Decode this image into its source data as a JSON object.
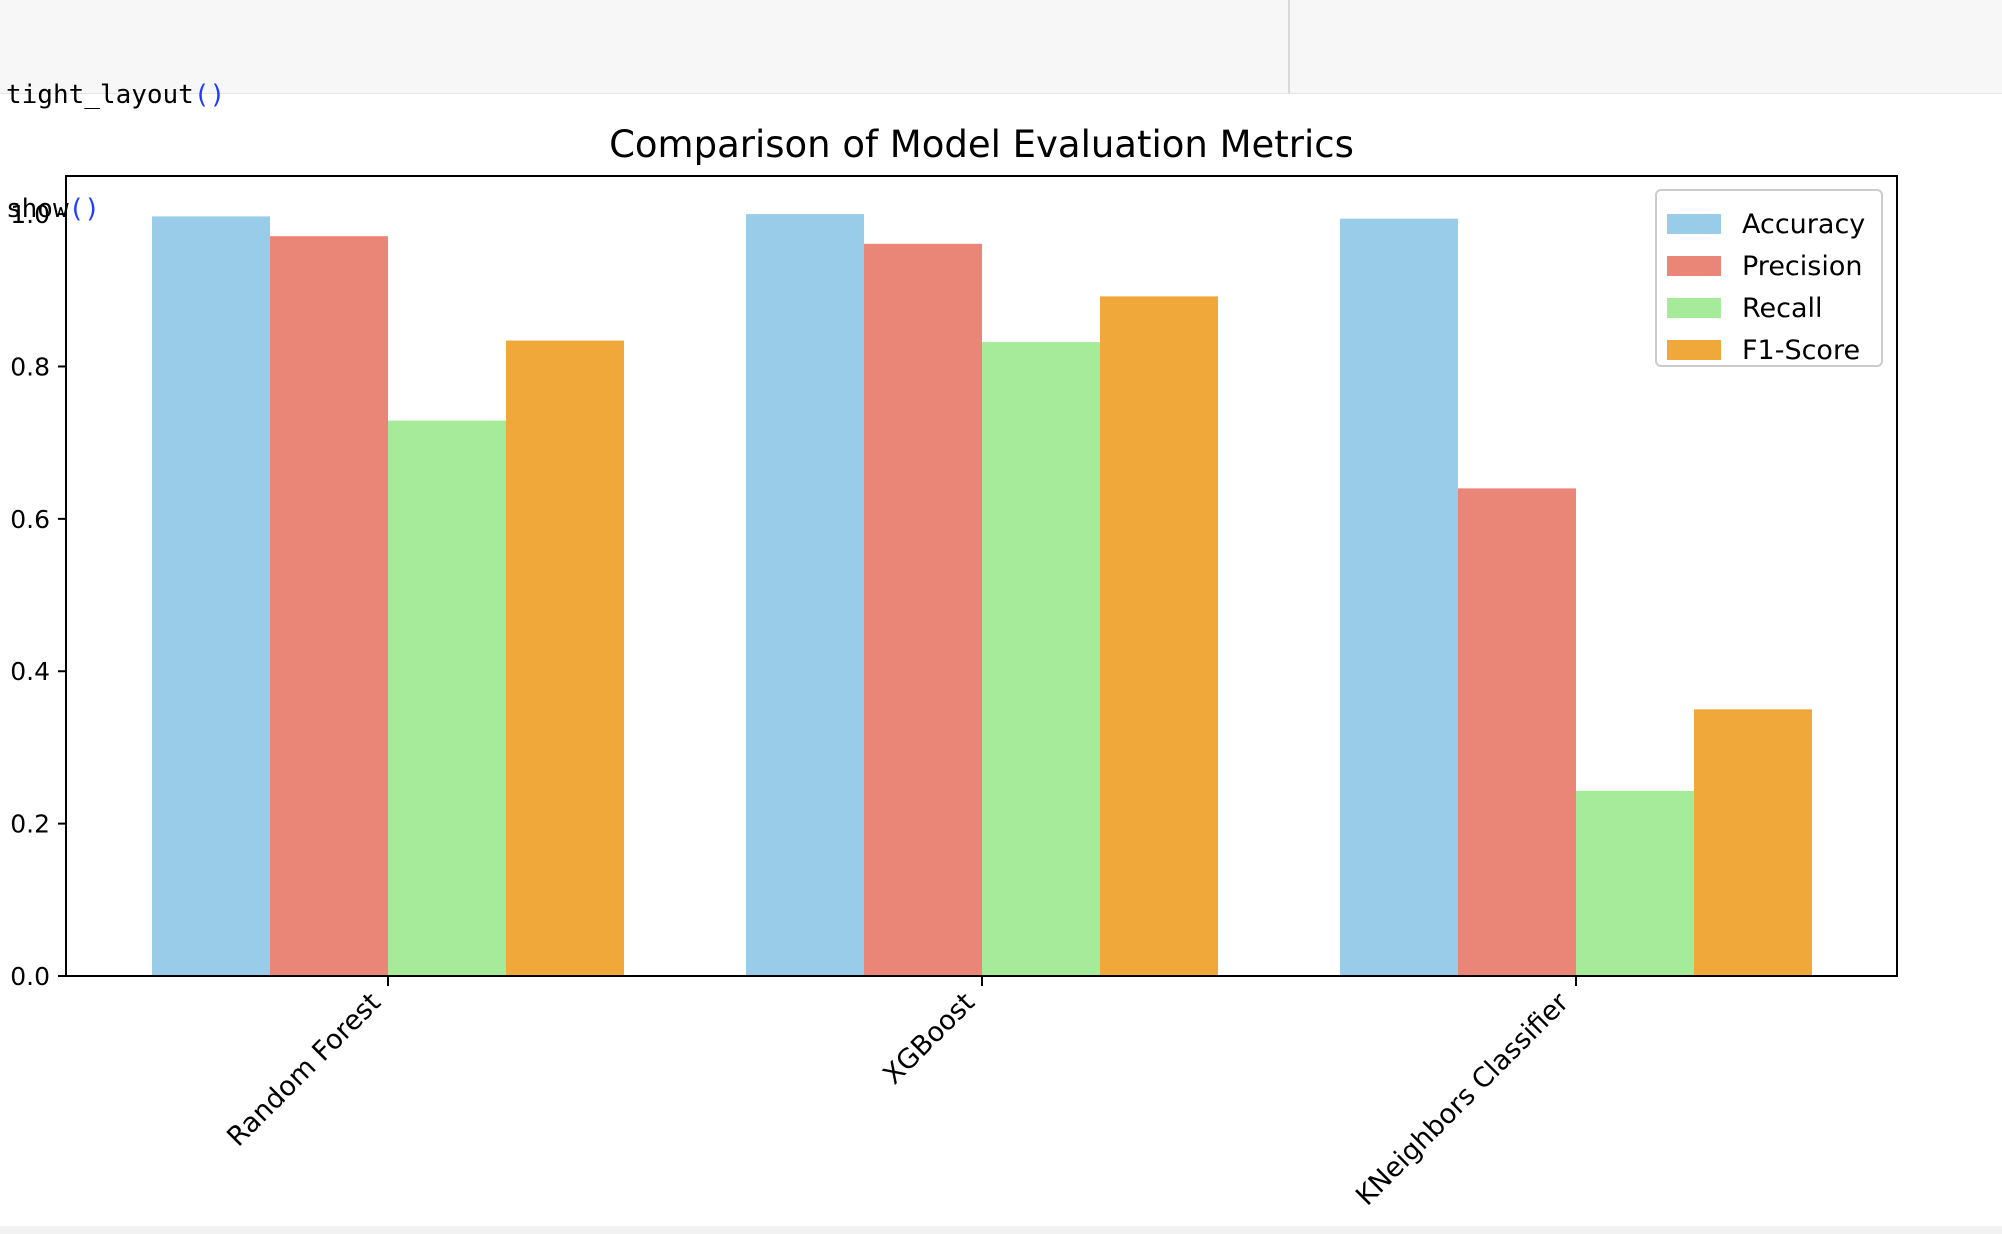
{
  "code": {
    "lines": [
      {
        "fn": "tight_layout",
        "paren": "()"
      },
      {
        "fn": "show",
        "paren": "()"
      }
    ]
  },
  "chart_data": {
    "type": "bar",
    "title": "Comparison of Model Evaluation Metrics",
    "xlabel": "",
    "ylabel": "",
    "categories": [
      "Random Forest",
      "XGBoost",
      "KNeighbors Classifier"
    ],
    "series": [
      {
        "name": "Accuracy",
        "color": "#98cce8",
        "values": [
          0.997,
          1.0,
          0.994
        ]
      },
      {
        "name": "Precision",
        "color": "#e98677",
        "values": [
          0.971,
          0.961,
          0.64
        ]
      },
      {
        "name": "Recall",
        "color": "#a6eb99",
        "values": [
          0.729,
          0.832,
          0.243
        ]
      },
      {
        "name": "F1-Score",
        "color": "#f0a83a",
        "values": [
          0.834,
          0.892,
          0.35
        ]
      }
    ],
    "ylim": [
      0,
      1.05
    ],
    "yticks": [
      "0.0",
      "0.2",
      "0.4",
      "0.6",
      "0.8",
      "1.0"
    ],
    "ytick_values": [
      0,
      0.2,
      0.4,
      0.6,
      0.8,
      1.0
    ],
    "grid": false,
    "legend_position": "top-right",
    "xtick_rotation": "45deg"
  }
}
